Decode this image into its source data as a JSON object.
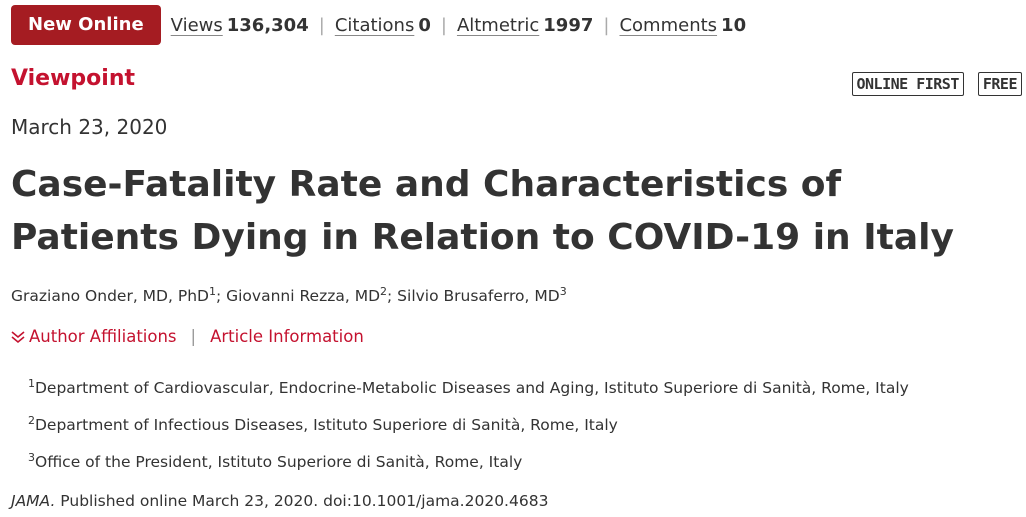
{
  "header": {
    "badge": "New Online",
    "metrics": [
      {
        "label": "Views",
        "value": "136,304"
      },
      {
        "label": "Citations",
        "value": "0"
      },
      {
        "label": "Altmetric",
        "value": "1997"
      },
      {
        "label": "Comments",
        "value": "10"
      }
    ]
  },
  "article": {
    "type": "Viewpoint",
    "tags": [
      "ONLINE FIRST",
      "FREE"
    ],
    "date": "March 23, 2020",
    "title": "Case-Fatality Rate and Characteristics of Patients Dying in Relation to COVID-19 in Italy",
    "authors": [
      {
        "name": "Graziano Onder, MD, PhD",
        "sup": "1",
        "sep": "; "
      },
      {
        "name": "Giovanni Rezza, MD",
        "sup": "2",
        "sep": "; "
      },
      {
        "name": "Silvio Brusaferro, MD",
        "sup": "3",
        "sep": ""
      }
    ],
    "links": {
      "affiliations": "Author Affiliations",
      "separator": "|",
      "info": "Article Information"
    },
    "affiliations": [
      {
        "sup": "1",
        "text": "Department of Cardiovascular, Endocrine-Metabolic Diseases and Aging, Istituto Superiore di Sanità, Rome, Italy"
      },
      {
        "sup": "2",
        "text": "Department of Infectious Diseases, Istituto Superiore di Sanità, Rome, Italy"
      },
      {
        "sup": "3",
        "text": "Office of the President, Istituto Superiore di Sanità, Rome, Italy"
      }
    ],
    "citation": {
      "journal": "JAMA.",
      "text": " Published online March 23, 2020. doi:10.1001/jama.2020.4683"
    }
  },
  "colors": {
    "brand": "#a51c22",
    "accent": "#c4122f"
  },
  "icons": {
    "affiliations_toggle": "chevron-double-down-icon"
  }
}
